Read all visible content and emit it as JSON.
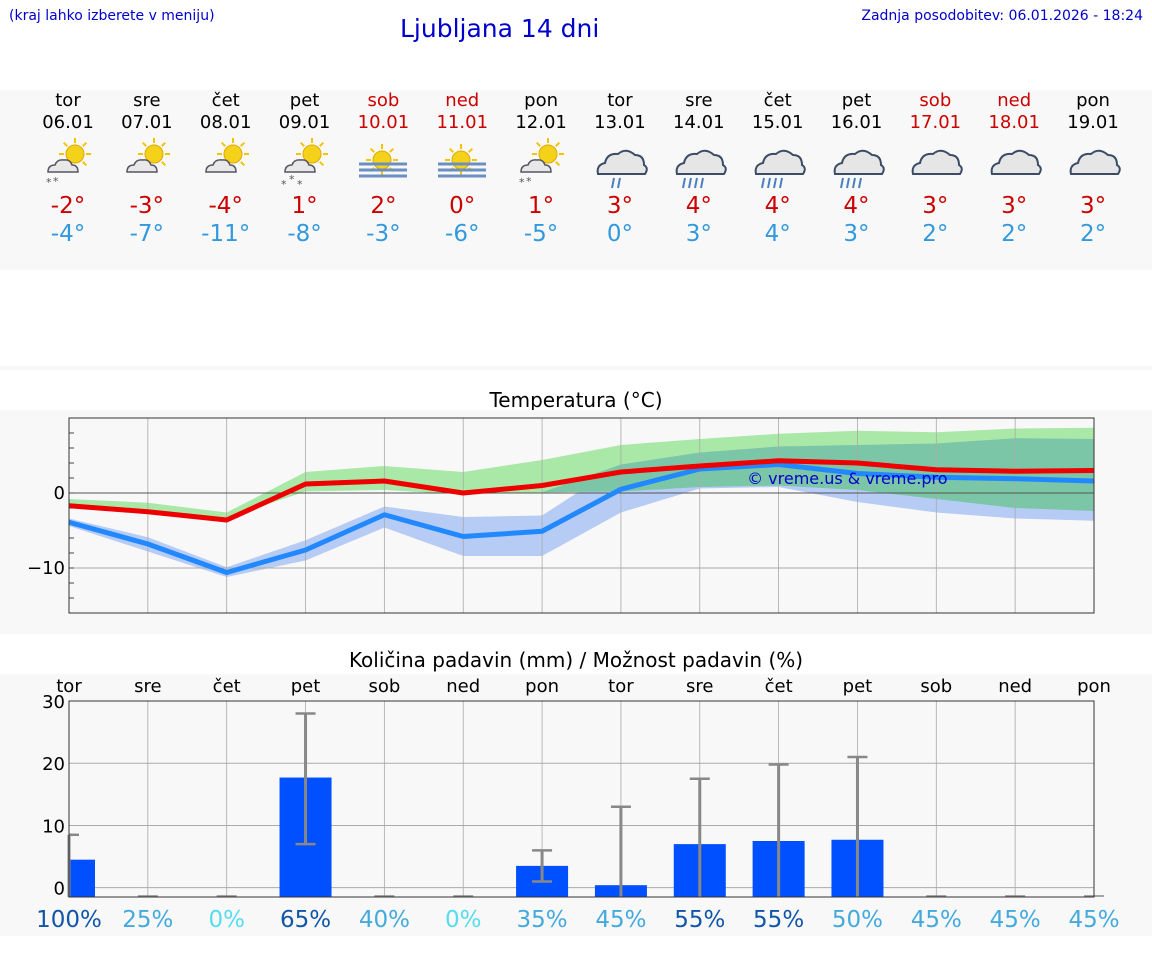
{
  "header": {
    "menu_hint": "(kraj lahko izberete v meniju)",
    "title": "Ljubljana 14 dni",
    "last_update": "Zadnja posodobitev: 06.01.2026 - 18:24"
  },
  "days": [
    {
      "name": "tor",
      "date": "06.01",
      "weekend": false,
      "icon": "sun-cloud-snow-icon",
      "tmax": "-2°",
      "tmin": "-4°"
    },
    {
      "name": "sre",
      "date": "07.01",
      "weekend": false,
      "icon": "sun-cloud-icon",
      "tmax": "-3°",
      "tmin": "-7°"
    },
    {
      "name": "čet",
      "date": "08.01",
      "weekend": false,
      "icon": "sun-cloud-icon",
      "tmax": "-4°",
      "tmin": "-11°"
    },
    {
      "name": "pet",
      "date": "09.01",
      "weekend": false,
      "icon": "sun-cloud-snow-heavy-icon",
      "tmax": "1°",
      "tmin": "-8°"
    },
    {
      "name": "sob",
      "date": "10.01",
      "weekend": true,
      "icon": "sun-fog-icon",
      "tmax": "2°",
      "tmin": "-3°"
    },
    {
      "name": "ned",
      "date": "11.01",
      "weekend": true,
      "icon": "sun-fog-icon",
      "tmax": "0°",
      "tmin": "-6°"
    },
    {
      "name": "pon",
      "date": "12.01",
      "weekend": false,
      "icon": "sun-cloud-snow-icon",
      "tmax": "1°",
      "tmin": "-5°"
    },
    {
      "name": "tor",
      "date": "13.01",
      "weekend": false,
      "icon": "cloud-rain-light-icon",
      "tmax": "3°",
      "tmin": "0°"
    },
    {
      "name": "sre",
      "date": "14.01",
      "weekend": false,
      "icon": "cloud-rain-icon",
      "tmax": "4°",
      "tmin": "3°"
    },
    {
      "name": "čet",
      "date": "15.01",
      "weekend": false,
      "icon": "cloud-rain-icon",
      "tmax": "4°",
      "tmin": "4°"
    },
    {
      "name": "pet",
      "date": "16.01",
      "weekend": false,
      "icon": "cloud-rain-icon",
      "tmax": "4°",
      "tmin": "3°"
    },
    {
      "name": "sob",
      "date": "17.01",
      "weekend": true,
      "icon": "cloud-icon",
      "tmax": "3°",
      "tmin": "2°"
    },
    {
      "name": "ned",
      "date": "18.01",
      "weekend": true,
      "icon": "cloud-icon",
      "tmax": "3°",
      "tmin": "2°"
    },
    {
      "name": "pon",
      "date": "19.01",
      "weekend": false,
      "icon": "cloud-icon",
      "tmax": "3°",
      "tmin": "2°"
    }
  ],
  "colors": {
    "link": "#0000cc",
    "max": "#cc0000",
    "min": "#3399dd",
    "max_line": "#ee0000",
    "min_line": "#2288ff",
    "max_band": "#aae8a8",
    "overlap_band": "#7cc6a8",
    "min_band": "#aac4f4",
    "bar": "#0050ff",
    "whisker": "#888888",
    "prob_low": "#55ddee",
    "prob_mid": "#44aadd",
    "prob_high": "#1155aa"
  },
  "chart_data": [
    {
      "type": "line",
      "title": "Temperatura (°C)",
      "watermark": "© vreme.us & vreme.pro",
      "x": [
        0,
        1,
        2,
        3,
        4,
        5,
        6,
        7,
        8,
        9,
        10,
        11,
        12,
        13
      ],
      "ylim": [
        -16,
        10
      ],
      "yticks": [
        {
          "value": 0,
          "label": "0"
        },
        {
          "value": -10,
          "label": "−10"
        }
      ],
      "series": [
        {
          "name": "max",
          "values": [
            -1.7,
            -2.5,
            -3.6,
            1.2,
            1.6,
            0.0,
            1.0,
            2.8,
            3.6,
            4.3,
            4.0,
            3.1,
            2.9,
            3.0
          ],
          "band_low": [
            -1.4,
            -2.3,
            -3.3,
            0.2,
            0.4,
            -0.2,
            0.1,
            0.2,
            0.8,
            1.0,
            0.4,
            -0.8,
            -2.0,
            -2.4
          ],
          "band_high": [
            -0.8,
            -1.3,
            -2.6,
            2.8,
            3.6,
            2.8,
            4.4,
            6.4,
            7.2,
            7.9,
            8.3,
            8.1,
            8.6,
            8.7
          ]
        },
        {
          "name": "min",
          "values": [
            -3.9,
            -6.8,
            -10.6,
            -7.6,
            -2.9,
            -5.8,
            -5.1,
            0.5,
            3.2,
            3.8,
            2.6,
            2.1,
            1.9,
            1.6
          ],
          "band_low": [
            -4.4,
            -7.8,
            -11.2,
            -9.0,
            -4.6,
            -8.4,
            -8.4,
            -2.6,
            0.6,
            0.8,
            -1.2,
            -2.6,
            -3.4,
            -3.7
          ],
          "band_high": [
            -3.4,
            -5.9,
            -9.9,
            -6.3,
            -1.8,
            -3.2,
            -3.0,
            3.8,
            5.4,
            6.2,
            6.4,
            6.6,
            7.3,
            7.2
          ]
        }
      ]
    },
    {
      "type": "bar",
      "title": "Količina padavin (mm) / Možnost padavin (%)",
      "categories": [
        "tor",
        "sre",
        "čet",
        "pet",
        "sob",
        "ned",
        "pon",
        "tor",
        "sre",
        "čet",
        "pet",
        "sob",
        "ned",
        "pon"
      ],
      "values": [
        4.5,
        0,
        0,
        17.7,
        0,
        0,
        3.5,
        0.4,
        7.0,
        7.5,
        7.7,
        0,
        0,
        0
      ],
      "error_high": [
        8.5,
        0,
        0,
        28.0,
        0,
        0,
        6.0,
        13.0,
        17.5,
        19.8,
        21.0,
        0,
        0,
        0
      ],
      "error_low": [
        0,
        0,
        0,
        7.0,
        0,
        0,
        1.0,
        0,
        0,
        0,
        0,
        0,
        0,
        0
      ],
      "ylim": [
        -1.5,
        30
      ],
      "yticks": [
        {
          "value": 0,
          "label": "0"
        },
        {
          "value": 10,
          "label": "10"
        },
        {
          "value": 20,
          "label": "20"
        },
        {
          "value": 30,
          "label": "30"
        }
      ],
      "probabilities": [
        "100%",
        "25%",
        "0%",
        "65%",
        "40%",
        "0%",
        "35%",
        "45%",
        "55%",
        "55%",
        "50%",
        "45%",
        "45%",
        "45%"
      ],
      "probability_values": [
        100,
        25,
        0,
        65,
        40,
        0,
        35,
        45,
        55,
        55,
        50,
        45,
        45,
        45
      ]
    }
  ]
}
